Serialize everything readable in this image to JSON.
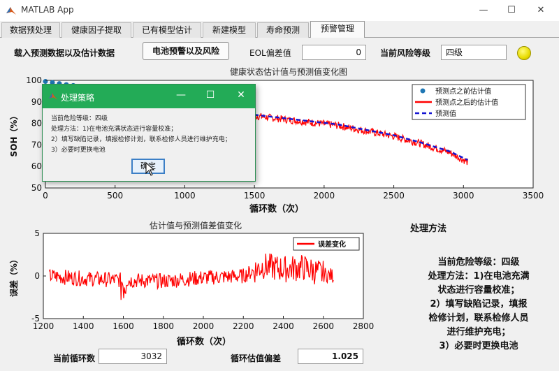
{
  "window": {
    "title": "MATLAB App",
    "controls": {
      "minimize": "—",
      "maximize": "☐",
      "close": "✕"
    }
  },
  "tabs": [
    {
      "label": "数据预处理",
      "active": false
    },
    {
      "label": "健康因子提取",
      "active": false
    },
    {
      "label": "已有模型估计",
      "active": false
    },
    {
      "label": "新建模型",
      "active": false
    },
    {
      "label": "寿命预测",
      "active": false
    },
    {
      "label": "预警管理",
      "active": true
    }
  ],
  "toolbar": {
    "load_label": "载入预测数据以及估计数据",
    "warning_button": "电池预警以及风险",
    "eol_label": "EOL偏差值",
    "eol_value": "0",
    "risk_label": "当前风险等级",
    "risk_value": "四级",
    "lamp_color": "#f2e600"
  },
  "chart1": {
    "title": "健康状态估计值与预测值变化图",
    "xlabel": "循环数（次）",
    "ylabel": "SOH（%）",
    "xticks": [
      "0",
      "500",
      "1000",
      "1500",
      "2000",
      "2500",
      "3000",
      "3500"
    ],
    "yticks": [
      "50",
      "60",
      "70",
      "80",
      "90",
      "100"
    ],
    "legend": [
      "预测点之前估计值",
      "预测点之后的估计值",
      "预测值"
    ]
  },
  "chart2": {
    "title": "估计值与预测值差值变化",
    "xlabel": "循环数（次）",
    "ylabel": "误差（%）",
    "xticks": [
      "1200",
      "1400",
      "1600",
      "1800",
      "2000",
      "2200",
      "2400",
      "2600",
      "2800"
    ],
    "yticks": [
      "-5",
      "0",
      "5"
    ],
    "legend": [
      "误差变化"
    ]
  },
  "chart_data": [
    {
      "type": "line",
      "title": "健康状态估计值与预测值变化图",
      "xlabel": "循环数（次）",
      "ylabel": "SOH（%）",
      "xlim": [
        0,
        3500
      ],
      "ylim": [
        50,
        100
      ],
      "series": [
        {
          "name": "预测点之前估计值",
          "style": "dots",
          "color": "#1f77b4",
          "x": [
            0,
            50,
            100,
            150,
            200,
            250,
            300
          ],
          "values": [
            99.5,
            99,
            98.5,
            98,
            97.6,
            97.2,
            96.8
          ]
        },
        {
          "name": "预测点之后的估计值",
          "style": "noisy-line",
          "color": "#ff0000",
          "x": [
            1300,
            1500,
            1700,
            1900,
            2100,
            2300,
            2500,
            2700,
            2900,
            3030
          ],
          "values": [
            85,
            83.5,
            82,
            80.5,
            79,
            76.5,
            74,
            70.5,
            66.5,
            62
          ]
        },
        {
          "name": "预测值",
          "style": "dashed",
          "color": "#1414d2",
          "x": [
            1300,
            1500,
            1700,
            1900,
            2100,
            2300,
            2500,
            2700,
            2900,
            3030
          ],
          "values": [
            85.5,
            84,
            82.5,
            81,
            79.5,
            77,
            74.5,
            71,
            67,
            63
          ]
        }
      ]
    },
    {
      "type": "line",
      "title": "估计值与预测值差值变化",
      "xlabel": "循环数（次）",
      "ylabel": "误差（%）",
      "xlim": [
        1200,
        2800
      ],
      "ylim": [
        -5,
        5
      ],
      "series": [
        {
          "name": "误差变化",
          "style": "noisy-line",
          "color": "#ff0000",
          "x": [
            1230,
            1400,
            1600,
            1800,
            2000,
            2200,
            2300,
            2400,
            2500,
            2600,
            2650
          ],
          "values": [
            0,
            -0.3,
            -0.5,
            -0.6,
            -0.2,
            0,
            1.2,
            0.8,
            1.0,
            0.2,
            0
          ]
        }
      ]
    }
  ],
  "bottom": {
    "cycle_label": "当前循环数",
    "cycle_value": "3032",
    "deviation_label": "循环估值偏差",
    "deviation_value": "1.025"
  },
  "method": {
    "heading": "处理方法",
    "lines": [
      "当前危险等级：四级",
      "处理方法：1)在电池充满",
      "状态进行容量校准；",
      "2）填写缺陷记录，填报",
      "检修计划，联系检修人员",
      "进行维护充电；",
      "3）必要时更换电池"
    ]
  },
  "dialog": {
    "title": "处理策略",
    "lines": [
      "当前危险等级：四级",
      "处理方法：1)在电池充满状态进行容量校准；",
      "2）填写缺陷记录，填报检修计划，联系检修人员进行维护充电；",
      "3）必要时更换电池"
    ],
    "ok_label": "确定",
    "minimize": "—",
    "maximize": "☐",
    "close": "✕"
  }
}
